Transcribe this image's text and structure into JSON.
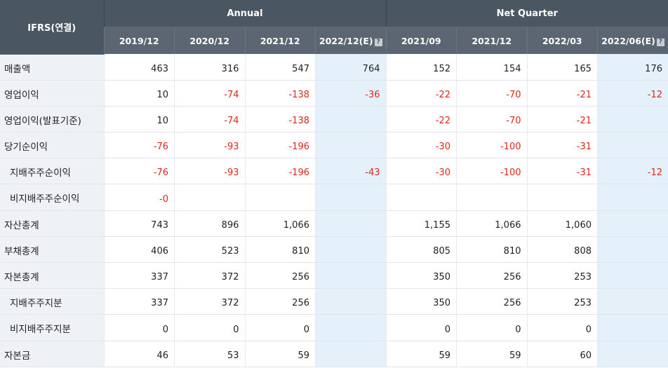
{
  "header": {
    "corner": "IFRS(연결)",
    "annual": "Annual",
    "quarter": "Net Quarter",
    "periods": [
      "2019/12",
      "2020/12",
      "2021/12",
      "2022/12(E)",
      "2021/09",
      "2021/12",
      "2022/03",
      "2022/06(E)"
    ],
    "estimate_icon": "?"
  },
  "rows": [
    {
      "label": "매출액",
      "values": [
        "463",
        "316",
        "547",
        "764",
        "152",
        "154",
        "165",
        "176"
      ]
    },
    {
      "label": "영업이익",
      "values": [
        "10",
        "-74",
        "-138",
        "-36",
        "-22",
        "-70",
        "-21",
        "-12"
      ]
    },
    {
      "label": "영업이익(발표기준)",
      "values": [
        "10",
        "-74",
        "-138",
        "",
        "-22",
        "-70",
        "-21",
        ""
      ]
    },
    {
      "label": "당기순이익",
      "values": [
        "-76",
        "-93",
        "-196",
        "",
        "-30",
        "-100",
        "-31",
        ""
      ]
    },
    {
      "label": "지배주주순이익",
      "values": [
        "-76",
        "-93",
        "-196",
        "-43",
        "-30",
        "-100",
        "-31",
        "-12"
      ]
    },
    {
      "label": "비지배주주순이익",
      "values": [
        "-0",
        "",
        "",
        "",
        "",
        "",
        "",
        ""
      ]
    },
    {
      "label": "자산총계",
      "values": [
        "743",
        "896",
        "1,066",
        "",
        "1,155",
        "1,066",
        "1,060",
        ""
      ]
    },
    {
      "label": "부채총계",
      "values": [
        "406",
        "523",
        "810",
        "",
        "805",
        "810",
        "808",
        ""
      ]
    },
    {
      "label": "자본총계",
      "values": [
        "337",
        "372",
        "256",
        "",
        "350",
        "256",
        "253",
        ""
      ]
    },
    {
      "label": "지배주주지분",
      "values": [
        "337",
        "372",
        "256",
        "",
        "350",
        "256",
        "253",
        ""
      ]
    },
    {
      "label": "비지배주주지분",
      "values": [
        "0",
        "0",
        "0",
        "",
        "0",
        "0",
        "0",
        ""
      ]
    },
    {
      "label": "자본금",
      "values": [
        "46",
        "53",
        "59",
        "",
        "59",
        "59",
        "60",
        ""
      ]
    }
  ],
  "colors": {
    "header_dark": "#4b5663",
    "header_sub": "#5c6673",
    "label_bg": "#eef1f6",
    "estimate_bg": "#e4f1fb",
    "negative": "#e0261b"
  }
}
